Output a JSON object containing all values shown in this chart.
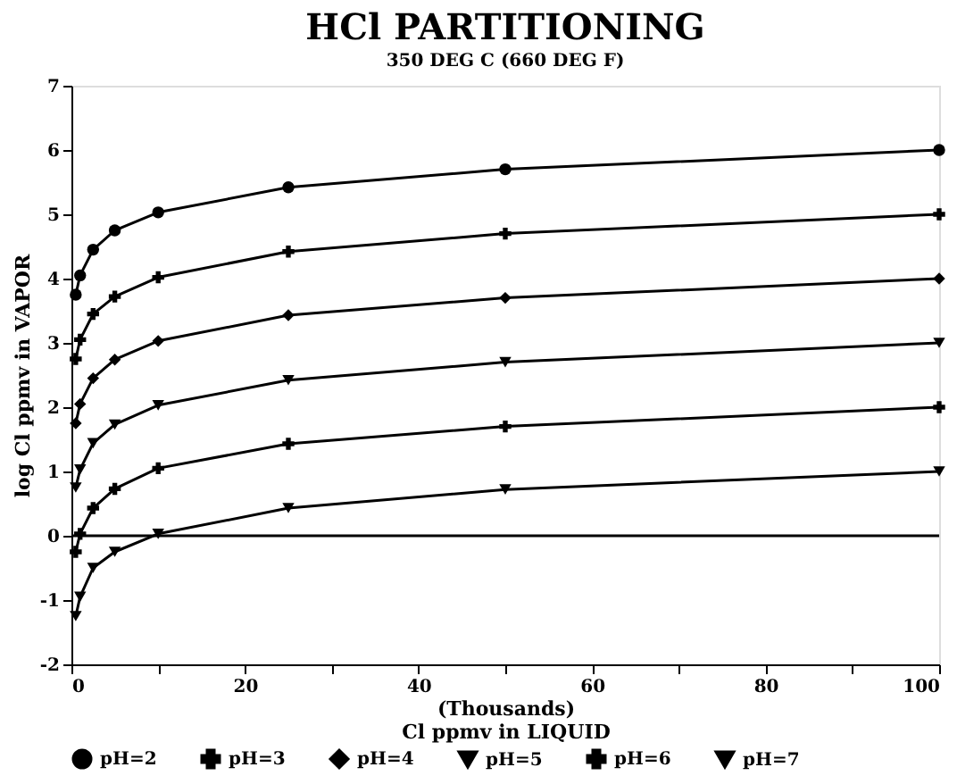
{
  "chart_data": {
    "type": "line",
    "title": "HCl PARTITIONING",
    "subtitle": "350 DEG C (660 DEG F)",
    "xlabel": "Cl ppmv in LIQUID",
    "ylabel": "log Cl ppmv in VAPOR",
    "annotations": [
      "(Thousands)"
    ],
    "x": [
      0.5,
      1,
      2.5,
      5,
      10,
      25,
      50,
      100
    ],
    "series": [
      {
        "name": "pH=2",
        "color": "#000000",
        "marker": "circle",
        "values": [
          3.75,
          4.05,
          4.45,
          4.75,
          5.03,
          5.42,
          5.7,
          6.0
        ]
      },
      {
        "name": "pH=3",
        "color": "#000000",
        "marker": "cross",
        "values": [
          2.75,
          3.05,
          3.45,
          3.72,
          4.02,
          4.42,
          4.7,
          5.0
        ]
      },
      {
        "name": "pH=4",
        "color": "#000000",
        "marker": "diamond",
        "values": [
          1.75,
          2.05,
          2.45,
          2.74,
          3.03,
          3.43,
          3.7,
          4.0
        ]
      },
      {
        "name": "pH=5",
        "color": "#000000",
        "marker": "triangle",
        "values": [
          0.75,
          1.03,
          1.44,
          1.73,
          2.03,
          2.42,
          2.7,
          3.0
        ]
      },
      {
        "name": "pH=6",
        "color": "#000000",
        "marker": "cross",
        "values": [
          -0.25,
          0.03,
          0.43,
          0.73,
          1.05,
          1.43,
          1.7,
          2.0
        ]
      },
      {
        "name": "pH=7",
        "color": "#000000",
        "marker": "triangle",
        "values": [
          -1.25,
          -0.95,
          -0.5,
          -0.25,
          0.03,
          0.43,
          0.72,
          1.0
        ]
      }
    ],
    "xlim": [
      0,
      100
    ],
    "xticks": [
      0,
      {
        "value": 10,
        "label": null
      },
      20,
      {
        "value": 30,
        "label": null
      },
      40,
      {
        "value": 50,
        "label": null
      },
      60,
      {
        "value": 70,
        "label": null
      },
      80,
      {
        "value": 90,
        "label": null
      },
      100
    ],
    "ylim": [
      -2,
      7
    ],
    "yticks": [
      -2,
      -1,
      0,
      1,
      2,
      3,
      4,
      5,
      6,
      7
    ],
    "ref_lines": [
      {
        "axis": "y",
        "value": 0,
        "color": "#000000"
      }
    ],
    "grid": false,
    "legend": "bottom",
    "line_style": "solid"
  }
}
